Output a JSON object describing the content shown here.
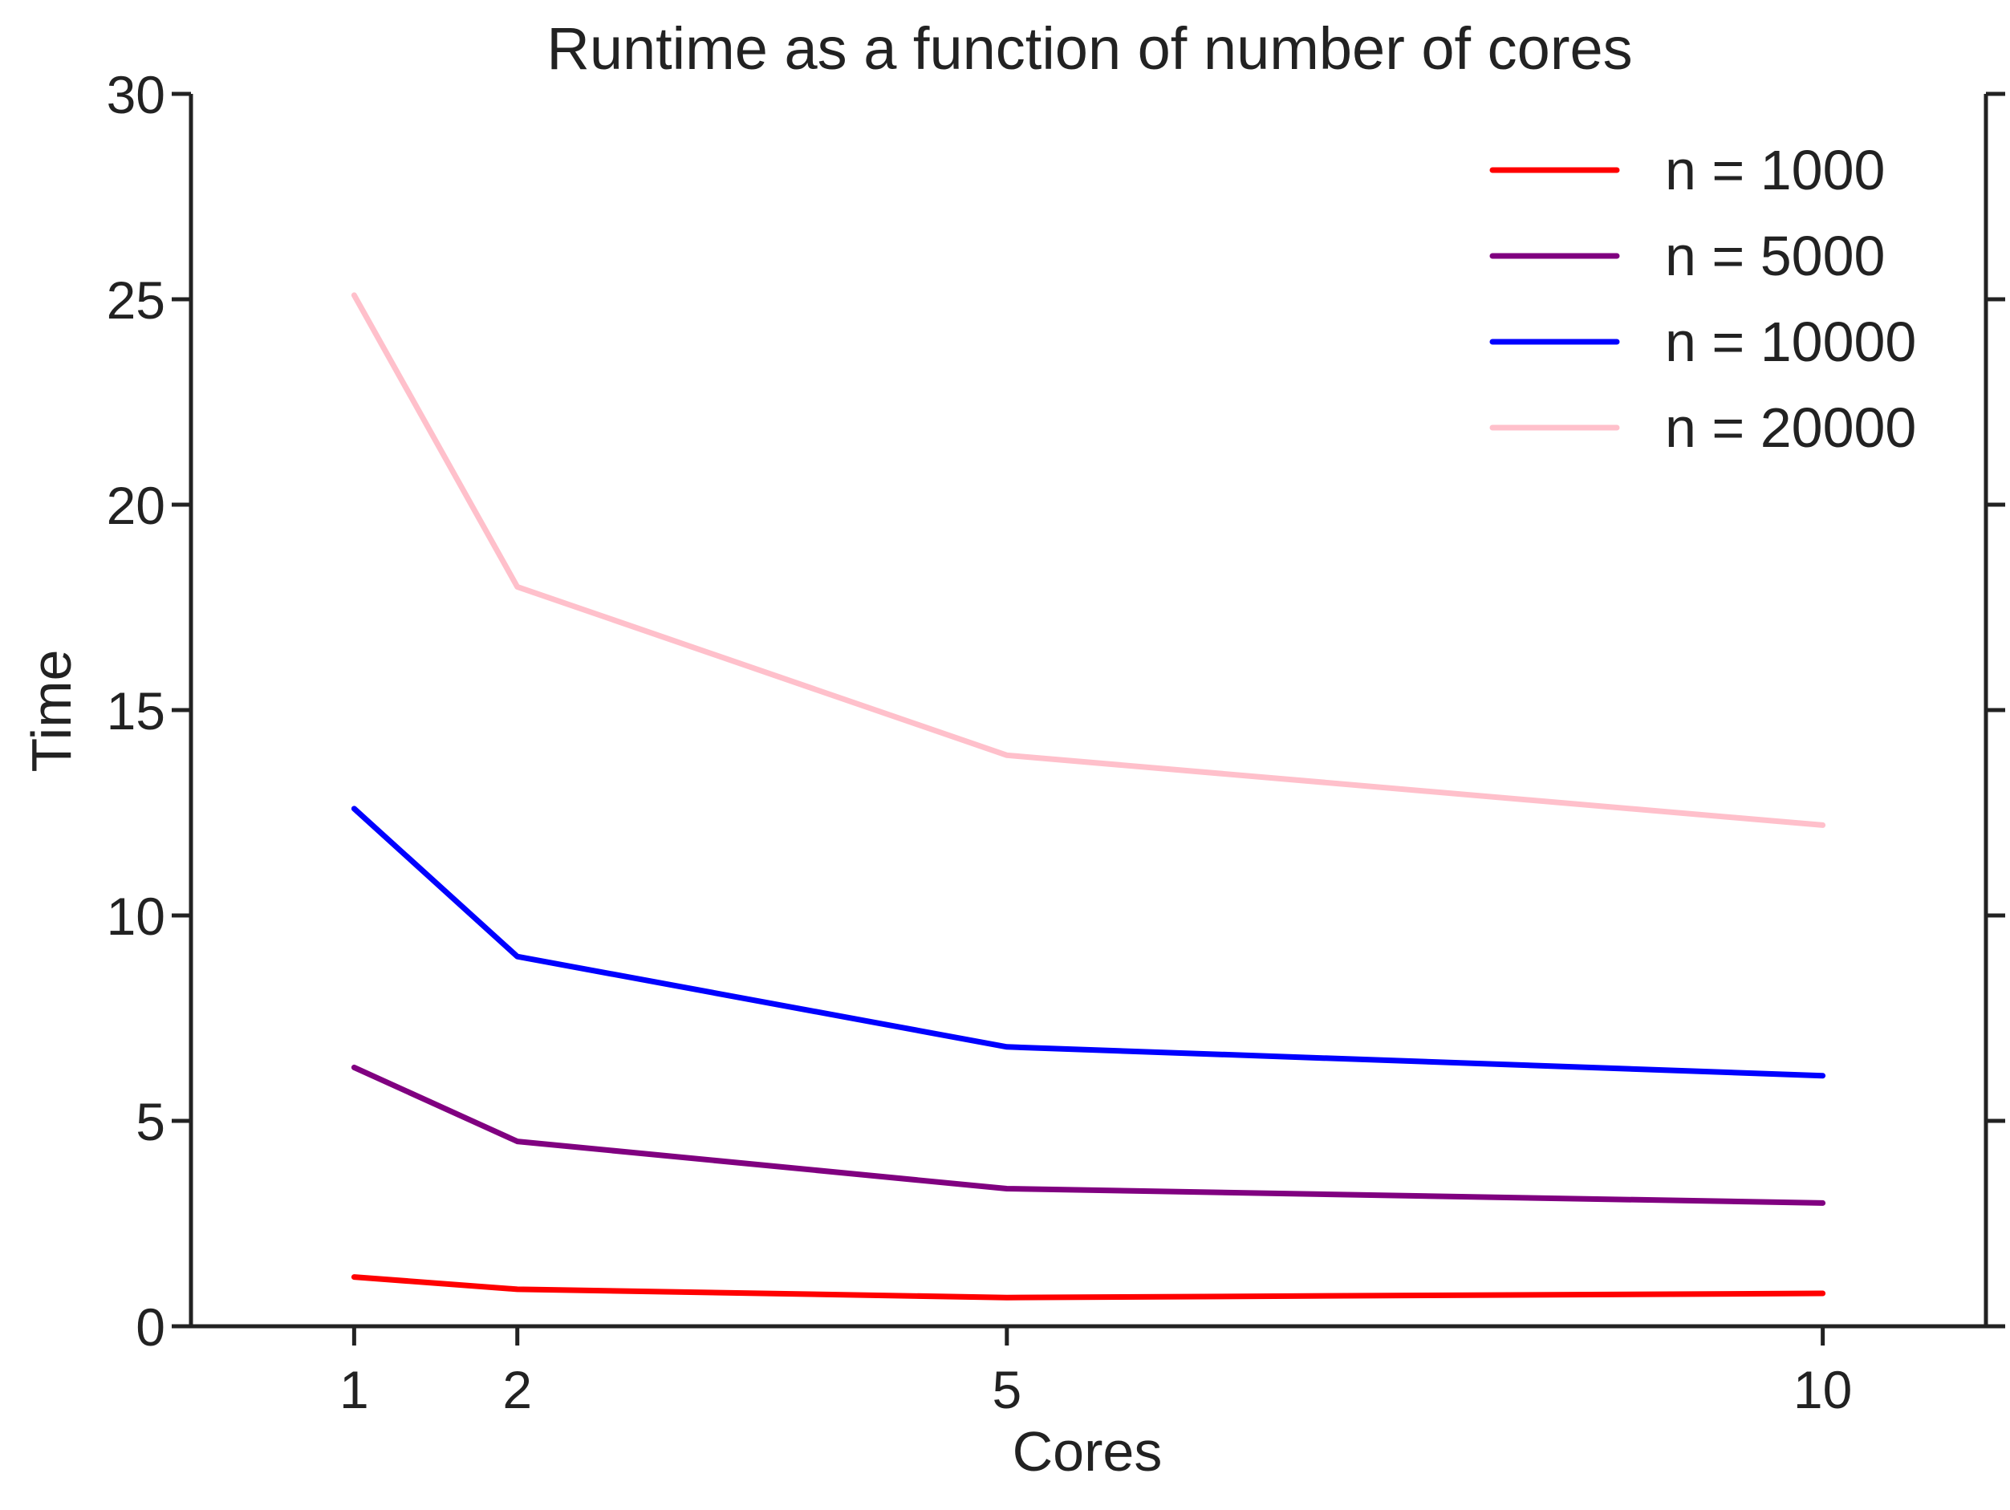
{
  "chart_data": {
    "type": "line",
    "title": "Runtime as a function of number of cores",
    "xlabel": "Cores",
    "ylabel": "Time",
    "x": [
      1,
      2,
      5,
      10
    ],
    "xlim": [
      0,
      11
    ],
    "ylim": [
      0,
      30
    ],
    "xticks": [
      1,
      2,
      5,
      10
    ],
    "yticks": [
      0,
      5,
      10,
      15,
      20,
      25,
      30
    ],
    "grid": false,
    "legend_position": "top-right",
    "series": [
      {
        "name": "n = 1000",
        "color": "#ff0000",
        "values": [
          1.2,
          0.9,
          0.7,
          0.8
        ]
      },
      {
        "name": "n = 5000",
        "color": "#800080",
        "values": [
          6.3,
          4.5,
          3.35,
          3.0
        ]
      },
      {
        "name": "n = 10000",
        "color": "#0000ff",
        "values": [
          12.6,
          9.0,
          6.8,
          6.1
        ]
      },
      {
        "name": "n = 20000",
        "color": "#ffc0cb",
        "values": [
          25.1,
          18.0,
          13.9,
          12.2
        ]
      }
    ]
  }
}
